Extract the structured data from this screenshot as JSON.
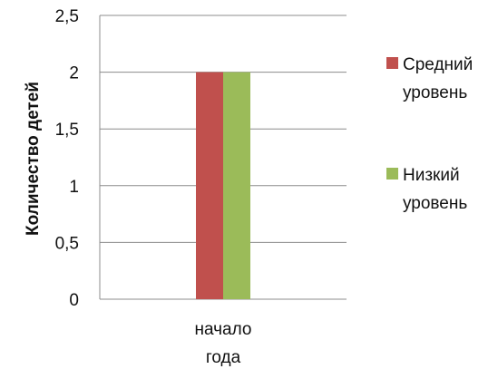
{
  "chart_data": {
    "type": "bar",
    "categories": [
      "начало года"
    ],
    "category_lines": [
      [
        "начало",
        "года"
      ]
    ],
    "series": [
      {
        "name": "Средний уровень",
        "name_lines": [
          "Средний",
          "уровень"
        ],
        "values": [
          2
        ],
        "color": "#c0504d"
      },
      {
        "name": "Низкий уровень",
        "name_lines": [
          "Низкий",
          "уровень"
        ],
        "values": [
          2
        ],
        "color": "#9bbb59"
      }
    ],
    "ylabel": "Количество детей",
    "ylim": [
      0,
      2.5
    ],
    "yticks": [
      "0",
      "0,5",
      "1",
      "1,5",
      "2",
      "2,5"
    ],
    "grid": true,
    "legend": "right"
  }
}
